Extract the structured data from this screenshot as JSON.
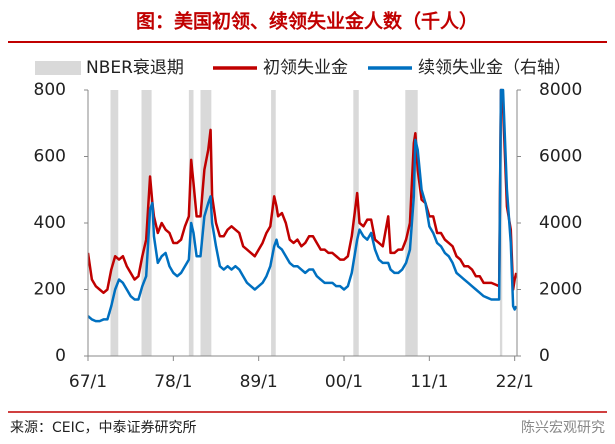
{
  "header": {
    "title": "图：美国初领、续领失业金人数（千人）"
  },
  "chart_data": {
    "type": "line",
    "recessions": {
      "name": "NBER衰退期",
      "color": "#d9d9d9",
      "ranges": [
        [
          1969.9,
          1970.9
        ],
        [
          1973.9,
          1975.2
        ],
        [
          1980.0,
          1980.6
        ],
        [
          1981.5,
          1982.9
        ],
        [
          1990.6,
          1991.2
        ],
        [
          2001.2,
          2001.9
        ],
        [
          2007.9,
          2009.5
        ],
        [
          2020.1,
          2020.4
        ]
      ]
    },
    "x": [
      1967,
      1967.5,
      1968,
      1968.5,
      1969,
      1969.5,
      1970,
      1970.5,
      1971,
      1971.5,
      1972,
      1972.5,
      1973,
      1973.5,
      1974,
      1974.5,
      1975,
      1975.3,
      1975.5,
      1976,
      1976.5,
      1977,
      1977.5,
      1978,
      1978.5,
      1979,
      1979.5,
      1980,
      1980.3,
      1980.6,
      1981,
      1981.5,
      1982,
      1982.5,
      1982.8,
      1983,
      1983.5,
      1984,
      1984.5,
      1985,
      1985.5,
      1986,
      1986.5,
      1987,
      1987.5,
      1988,
      1988.5,
      1989,
      1989.5,
      1990,
      1990.5,
      1991,
      1991.3,
      1991.5,
      1992,
      1992.5,
      1993,
      1993.5,
      1994,
      1994.5,
      1995,
      1995.5,
      1996,
      1996.5,
      1997,
      1997.5,
      1998,
      1998.5,
      1999,
      1999.5,
      2000,
      2000.5,
      2001,
      2001.7,
      2002,
      2002.5,
      2003,
      2003.5,
      2004,
      2004.5,
      2005,
      2005.7,
      2006,
      2006.5,
      2007,
      2007.5,
      2008,
      2008.5,
      2009,
      2009.2,
      2009.5,
      2010,
      2010.5,
      2011,
      2011.5,
      2012,
      2012.5,
      2013,
      2013.5,
      2014,
      2014.5,
      2015,
      2015.5,
      2016,
      2016.5,
      2017,
      2017.5,
      2018,
      2018.5,
      2019,
      2019.5,
      2020,
      2020.23,
      2020.5,
      2021,
      2021.5,
      2021.8,
      2022,
      2022.2
    ],
    "series": [
      {
        "name": "初领失业金",
        "color": "#c00000",
        "axis": "y",
        "values": [
          310,
          230,
          210,
          200,
          190,
          200,
          260,
          300,
          290,
          300,
          270,
          250,
          230,
          240,
          300,
          350,
          540,
          460,
          420,
          370,
          400,
          380,
          370,
          340,
          340,
          350,
          390,
          420,
          590,
          520,
          420,
          420,
          560,
          620,
          680,
          480,
          400,
          360,
          360,
          380,
          390,
          380,
          370,
          330,
          320,
          310,
          300,
          320,
          340,
          370,
          390,
          480,
          450,
          420,
          430,
          400,
          350,
          340,
          350,
          330,
          340,
          360,
          360,
          340,
          320,
          320,
          310,
          310,
          300,
          290,
          290,
          300,
          360,
          490,
          400,
          390,
          410,
          410,
          350,
          340,
          330,
          420,
          310,
          310,
          320,
          320,
          350,
          400,
          640,
          670,
          560,
          470,
          460,
          420,
          420,
          370,
          370,
          350,
          340,
          330,
          300,
          290,
          270,
          270,
          260,
          240,
          240,
          220,
          220,
          220,
          215,
          210,
          800,
          750,
          450,
          380,
          200,
          230,
          250
        ]
      },
      {
        "name": "续领失业金（右轴）",
        "color": "#0070c0",
        "axis": "y2",
        "values": [
          1200,
          1100,
          1050,
          1050,
          1100,
          1100,
          1500,
          2000,
          2300,
          2200,
          2000,
          1800,
          1700,
          1700,
          2100,
          2400,
          4400,
          4600,
          3600,
          2800,
          3000,
          3100,
          2700,
          2500,
          2400,
          2500,
          2700,
          2900,
          4000,
          3700,
          3000,
          3000,
          4200,
          4600,
          4800,
          4000,
          3300,
          2700,
          2600,
          2700,
          2600,
          2700,
          2600,
          2400,
          2200,
          2100,
          2000,
          2100,
          2200,
          2400,
          2700,
          3300,
          3500,
          3300,
          3200,
          3000,
          2800,
          2700,
          2700,
          2600,
          2500,
          2600,
          2600,
          2400,
          2300,
          2200,
          2200,
          2200,
          2100,
          2100,
          2000,
          2100,
          2500,
          3500,
          3800,
          3600,
          3500,
          3700,
          3200,
          2900,
          2800,
          2800,
          2600,
          2500,
          2500,
          2600,
          2800,
          3200,
          4800,
          6500,
          6200,
          5000,
          4600,
          3900,
          3700,
          3400,
          3300,
          3100,
          3000,
          2800,
          2500,
          2400,
          2300,
          2200,
          2100,
          2000,
          1900,
          1800,
          1750,
          1700,
          1700,
          1700,
          8000,
          8000,
          5000,
          3400,
          1500,
          1400,
          1500
        ]
      }
    ],
    "xlim": [
      1967,
      2022.3
    ],
    "xticks": [
      {
        "value": 1967,
        "label": "67/1"
      },
      {
        "value": 1978,
        "label": "78/1"
      },
      {
        "value": 1989,
        "label": "89/1"
      },
      {
        "value": 2000,
        "label": "00/1"
      },
      {
        "value": 2011,
        "label": "11/1"
      },
      {
        "value": 2022,
        "label": "22/1"
      }
    ],
    "ylim": [
      0,
      800
    ],
    "yticks": [
      0,
      200,
      400,
      600,
      800
    ],
    "y2lim": [
      0,
      8000
    ],
    "y2ticks": [
      0,
      2000,
      4000,
      6000,
      8000
    ]
  },
  "footer": {
    "source": "来源：CEIC，中泰证券研究所",
    "watermark": "陈兴宏观研究"
  }
}
